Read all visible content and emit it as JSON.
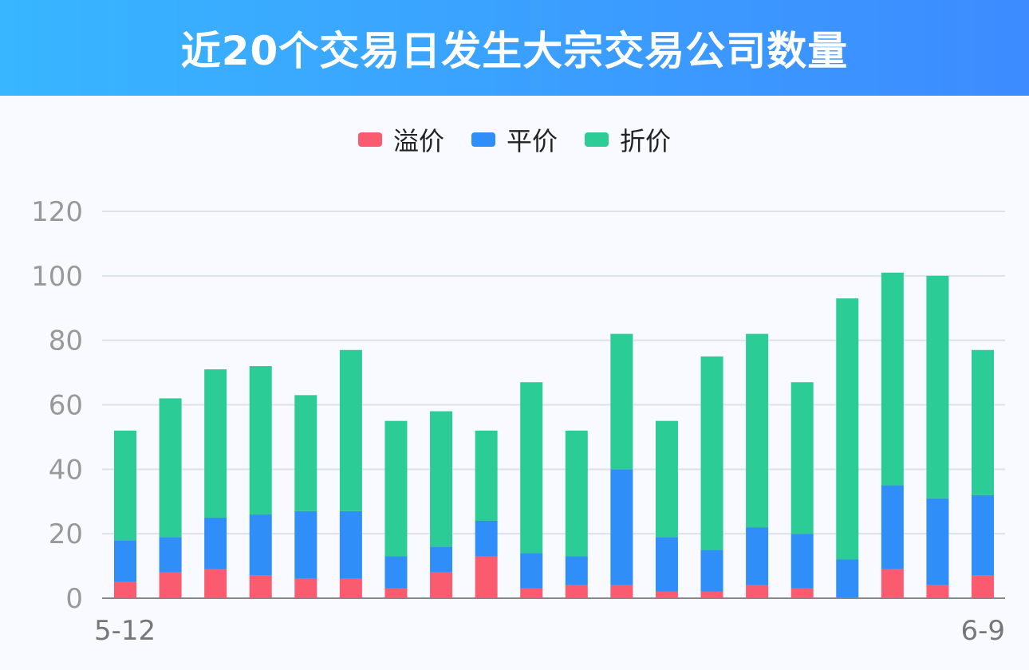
{
  "title": "近20个交易日发生大宗交易公司数量",
  "colors": {
    "premium": "#fb5b6f",
    "par": "#2f8ef7",
    "discount": "#2ccc96",
    "header_start": "#38b6ff",
    "header_end": "#3d8bff"
  },
  "chart_data": {
    "type": "bar",
    "stacked": true,
    "categories": [
      "5-12",
      "",
      "",
      "",
      "",
      "",
      "",
      "",
      "",
      "",
      "",
      "",
      "",
      "",
      "",
      "",
      "",
      "",
      "",
      "6-9"
    ],
    "x_tick_labels": [
      "5-12",
      "6-9"
    ],
    "series": [
      {
        "name": "溢价",
        "color": "#fb5b6f",
        "values": [
          5,
          8,
          9,
          7,
          6,
          6,
          3,
          8,
          13,
          3,
          4,
          4,
          2,
          2,
          4,
          3,
          0,
          9,
          4,
          7
        ]
      },
      {
        "name": "平价",
        "color": "#2f8ef7",
        "values": [
          13,
          11,
          16,
          19,
          21,
          21,
          10,
          8,
          11,
          11,
          9,
          36,
          17,
          13,
          18,
          17,
          12,
          26,
          27,
          25
        ]
      },
      {
        "name": "折价",
        "color": "#2ccc96",
        "values": [
          34,
          43,
          46,
          46,
          36,
          50,
          42,
          42,
          28,
          53,
          39,
          42,
          36,
          60,
          60,
          47,
          81,
          66,
          69,
          45
        ]
      }
    ],
    "ylim": [
      0,
      120
    ],
    "yticks": [
      0,
      20,
      40,
      60,
      80,
      100,
      120
    ],
    "grid": true,
    "legend_position": "top-center"
  }
}
